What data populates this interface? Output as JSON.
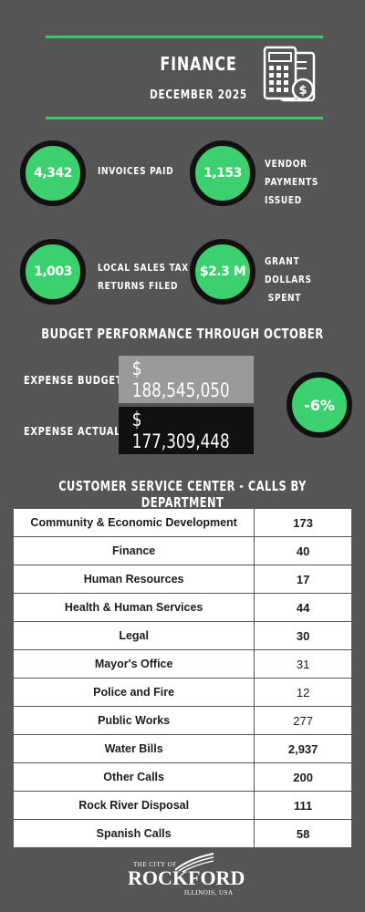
{
  "header": {
    "title": "FINANCE",
    "subtitle": "DECEMBER 2025"
  },
  "stats": [
    {
      "value": "4,342",
      "label_lines": [
        "INVOICES PAID"
      ]
    },
    {
      "value": "1,153",
      "label_lines": [
        "VENDOR",
        "PAYMENTS ISSUED"
      ]
    },
    {
      "value": "1,003",
      "label_lines": [
        "LOCAL SALES TAX",
        "RETURNS FILED"
      ]
    },
    {
      "value": "$2.3 M",
      "label_lines": [
        "GRANT DOLLARS",
        " SPENT"
      ]
    }
  ],
  "budget": {
    "heading": "BUDGET PERFORMANCE THROUGH OCTOBER",
    "expense_budget_label": "EXPENSE BUDGET",
    "expense_budget_value": "$ 188,545,050",
    "expense_actual_label": "EXPENSE ACTUAL",
    "expense_actual_value": "$ 177,309,448",
    "variance": "-6%"
  },
  "calls": {
    "heading": "CUSTOMER SERVICE CENTER - CALLS BY DEPARTMENT",
    "rows": [
      {
        "department": "Community & Economic Development",
        "count": "173",
        "bold": true
      },
      {
        "department": "Finance",
        "count": "40",
        "bold": true
      },
      {
        "department": "Human Resources",
        "count": "17",
        "bold": true
      },
      {
        "department": "Health & Human Services",
        "count": "44",
        "bold": true
      },
      {
        "department": "Legal",
        "count": "30",
        "bold": true
      },
      {
        "department": "Mayor's Office",
        "count": "31",
        "bold": false
      },
      {
        "department": "Police and Fire",
        "count": "12",
        "bold": false
      },
      {
        "department": "Public Works",
        "count": "277",
        "bold": false
      },
      {
        "department": "Water Bills",
        "count": "2,937",
        "bold": true
      },
      {
        "department": "Other Calls",
        "count": "200",
        "bold": true
      },
      {
        "department": "Rock River Disposal",
        "count": "111",
        "bold": true
      },
      {
        "department": "Spanish Calls",
        "count": "58",
        "bold": true
      }
    ]
  },
  "logo": {
    "line1": "THE CITY OF",
    "line2": "ROCKFORD",
    "line3": "ILLINOIS, USA"
  },
  "icons": {
    "header_icon": "calculator-invoice-icon"
  },
  "colors": {
    "background": "#555555",
    "accent_green": "#3dd06f",
    "circle_border": "#111111",
    "budget_box": "#9a9a9a",
    "actual_box": "#111111"
  }
}
